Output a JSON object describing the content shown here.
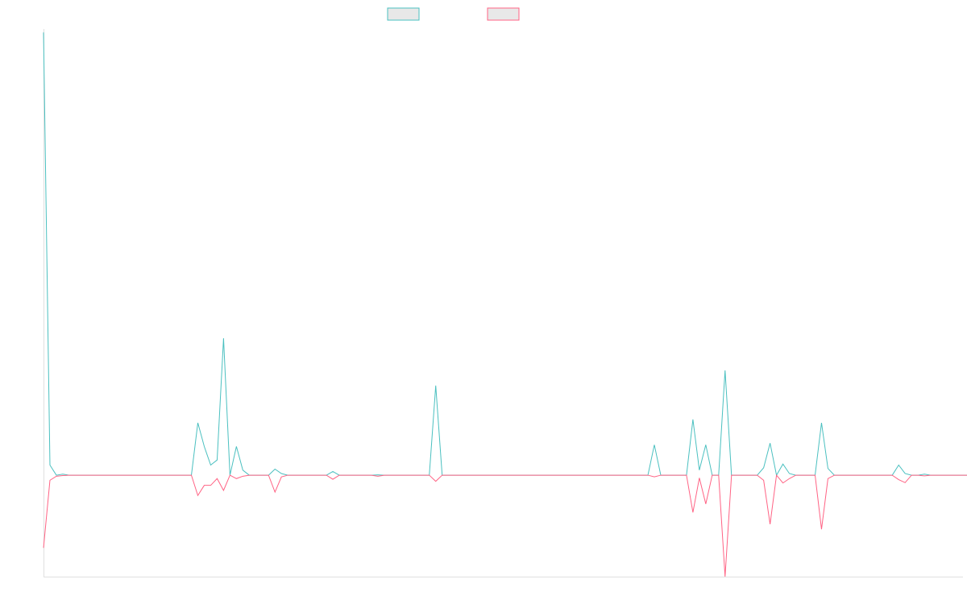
{
  "chart_data": {
    "type": "line",
    "title": "",
    "xlabel": "",
    "ylabel": "",
    "grid": false,
    "legend": "top-center",
    "x_count": 144,
    "ylim": [
      -30,
      132
    ],
    "series": [
      {
        "color": "#4bc0c0",
        "values": [
          131,
          3,
          0,
          0.3,
          0,
          0,
          0,
          0,
          0,
          0,
          0,
          0,
          0,
          0,
          0,
          0,
          0,
          0,
          0,
          0,
          0,
          0,
          0,
          0,
          15.5,
          8.5,
          3,
          4.5,
          40.5,
          0,
          8.5,
          1.5,
          0,
          0,
          0,
          0,
          1.8,
          0.5,
          0,
          0,
          0,
          0,
          0,
          0,
          0,
          1.1,
          0,
          0,
          0,
          0,
          0,
          0,
          0.1,
          0,
          0,
          0,
          0,
          0,
          0,
          0,
          0,
          26.5,
          0,
          0,
          0,
          0,
          0,
          0,
          0,
          0,
          0,
          0,
          0,
          0,
          0,
          0,
          0,
          0,
          0,
          0,
          0,
          0,
          0,
          0,
          0,
          0,
          0,
          0,
          0,
          0,
          0,
          0,
          0,
          0,
          0,
          9,
          0,
          0,
          0,
          0,
          0,
          16.5,
          1.5,
          9,
          0,
          0,
          31,
          0,
          0,
          0,
          0,
          0,
          2.2,
          9.5,
          0,
          3.3,
          0.5,
          0,
          0,
          0,
          0,
          15.5,
          2,
          0,
          0,
          0,
          0,
          0,
          0,
          0,
          0,
          0,
          0,
          3,
          0.5,
          0,
          0,
          0.3,
          0,
          0,
          0,
          0,
          0,
          0,
          0,
          0
        ]
      },
      {
        "color": "#ff6384",
        "values": [
          -21.5,
          -1.5,
          -0.3,
          -0.1,
          0,
          0,
          0,
          0,
          0,
          0,
          0,
          0,
          0,
          0,
          0,
          0,
          0,
          0,
          0,
          0,
          0,
          0,
          0,
          0,
          -6,
          -3,
          -3,
          -1,
          -4.5,
          0,
          -1,
          -0.3,
          0,
          0,
          0,
          0,
          -5,
          -0.5,
          0,
          0,
          0,
          0,
          0,
          0,
          0,
          -1.2,
          0,
          0,
          0,
          0,
          0,
          0,
          -0.3,
          0,
          0,
          0,
          0,
          0,
          0,
          0,
          0,
          -1.8,
          0,
          0,
          0,
          0,
          0,
          0,
          0,
          0,
          0,
          0,
          0,
          0,
          0,
          0,
          0,
          0,
          0,
          0,
          0,
          0,
          0,
          0,
          0,
          0,
          0,
          0,
          0,
          0,
          0,
          0,
          0,
          0,
          0,
          -0.5,
          0,
          0,
          0,
          0,
          0,
          -11,
          -0.8,
          -8.5,
          0,
          0,
          -30,
          0,
          0,
          0,
          0,
          0,
          -1.5,
          -14.5,
          0,
          -2.3,
          -1,
          0,
          0,
          0,
          0,
          -16,
          -1,
          0,
          0,
          0,
          0,
          0,
          0,
          0,
          0,
          0,
          0,
          -1.3,
          -2.2,
          0,
          0,
          -0.2,
          0,
          0,
          0,
          0,
          0,
          0,
          0,
          0
        ]
      }
    ]
  }
}
